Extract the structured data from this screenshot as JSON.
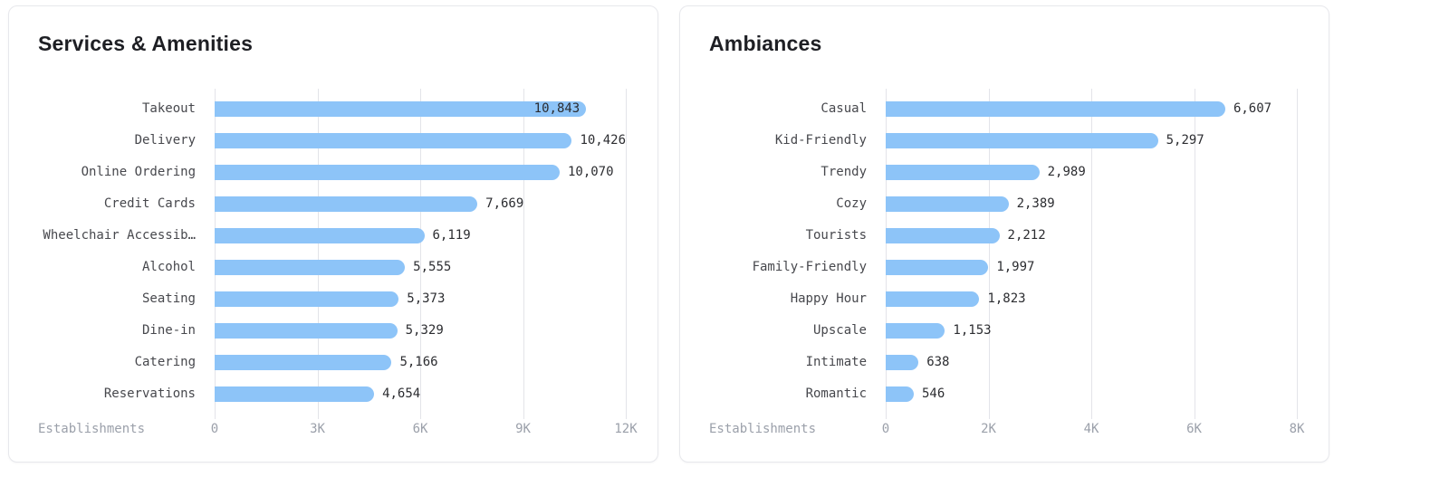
{
  "theme": {
    "bar_color": "#8dc4f8",
    "gridline_color": "#e3e4e9",
    "card_border_color": "#e7e8ec",
    "title_color": "#1e1f24",
    "category_label_color": "#47484d",
    "value_label_color": "#2c2d31",
    "axis_text_color": "#9ba0aa",
    "background": "#ffffff"
  },
  "chart_data": [
    {
      "type": "bar",
      "orientation": "horizontal",
      "title": "Services & Amenities",
      "xlabel": "Establishments",
      "xlim": [
        0,
        12000
      ],
      "xticks": [
        "0",
        "3K",
        "6K",
        "9K",
        "12K"
      ],
      "grid": true,
      "legend": null,
      "bar_color": "#8dc4f8",
      "categories": [
        "Takeout",
        "Delivery",
        "Online Ordering",
        "Credit Cards",
        "Wheelchair Accessib…",
        "Alcohol",
        "Seating",
        "Dine-in",
        "Catering",
        "Reservations"
      ],
      "values": [
        10843,
        10426,
        10070,
        7669,
        6119,
        5555,
        5373,
        5329,
        5166,
        4654
      ],
      "value_labels": [
        "10,843",
        "10,426",
        "10,070",
        "7,669",
        "6,119",
        "5,555",
        "5,373",
        "5,329",
        "5,166",
        "4,654"
      ]
    },
    {
      "type": "bar",
      "orientation": "horizontal",
      "title": "Ambiances",
      "xlabel": "Establishments",
      "xlim": [
        0,
        8000
      ],
      "xticks": [
        "0",
        "2K",
        "4K",
        "6K",
        "8K"
      ],
      "grid": true,
      "legend": null,
      "bar_color": "#8dc4f8",
      "categories": [
        "Casual",
        "Kid-Friendly",
        "Trendy",
        "Cozy",
        "Tourists",
        "Family-Friendly",
        "Happy Hour",
        "Upscale",
        "Intimate",
        "Romantic"
      ],
      "values": [
        6607,
        5297,
        2989,
        2389,
        2212,
        1997,
        1823,
        1153,
        638,
        546
      ],
      "value_labels": [
        "6,607",
        "5,297",
        "2,989",
        "2,389",
        "2,212",
        "1,997",
        "1,823",
        "1,153",
        "638",
        "546"
      ]
    }
  ]
}
